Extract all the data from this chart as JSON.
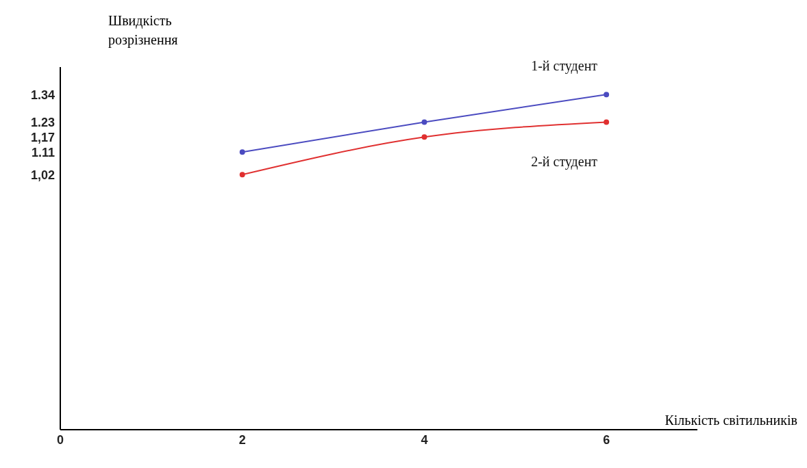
{
  "chart_data": {
    "type": "line",
    "xlabel": "Кількість світильників",
    "ylabel": "Швидкість розрізнення",
    "x": [
      2,
      4,
      6
    ],
    "series": [
      {
        "name": "1-й студент",
        "color": "#4b4bc0",
        "values": [
          1.11,
          1.23,
          1.34
        ]
      },
      {
        "name": "2-й студент",
        "color": "#e03030",
        "values": [
          1.02,
          1.17,
          1.23
        ]
      }
    ],
    "xlim": [
      0,
      7
    ],
    "xticks": [
      0,
      2,
      4,
      6
    ],
    "ylim": [
      0,
      1.45
    ],
    "yticks": [
      {
        "value": 1.02,
        "label": "1,02"
      },
      1.11,
      {
        "value": 1.17,
        "label": "1,17"
      },
      1.23,
      1.34
    ],
    "marker": "circle",
    "line_style": "solid",
    "grid": false,
    "legend": false
  }
}
